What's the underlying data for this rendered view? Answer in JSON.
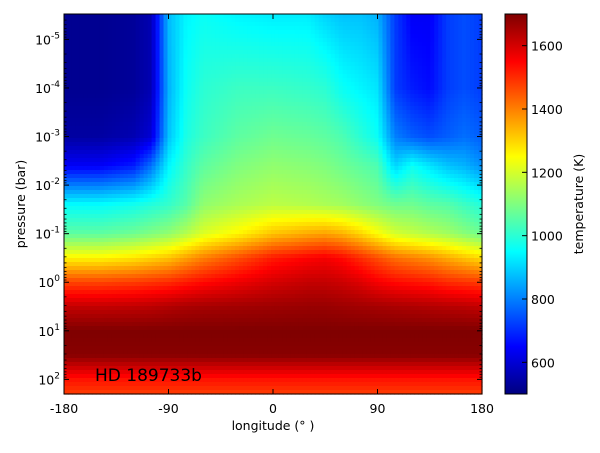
{
  "chart_data": {
    "type": "heatmap",
    "xlabel": "longitude (° )",
    "ylabel": "pressure (bar)",
    "colorbar_label": "temperature (K)",
    "annotation": "HD 189733b",
    "x_range": [
      -180,
      180
    ],
    "y_range_bar": [
      200,
      3e-06
    ],
    "y_scale": "log",
    "y_inverted": true,
    "colormap": "jet",
    "color_range_K": [
      500,
      1700
    ],
    "colorbar_ticks": [
      {
        "value": 600,
        "label": "600"
      },
      {
        "value": 800,
        "label": "800"
      },
      {
        "value": 1000,
        "label": "1000"
      },
      {
        "value": 1200,
        "label": "1200"
      },
      {
        "value": 1400,
        "label": "1400"
      },
      {
        "value": 1600,
        "label": "1600"
      }
    ],
    "x_ticks": [
      {
        "value": -180,
        "label": "-180"
      },
      {
        "value": -90,
        "label": "-90"
      },
      {
        "value": 0,
        "label": "0"
      },
      {
        "value": 90,
        "label": "90"
      },
      {
        "value": 180,
        "label": "180"
      }
    ],
    "y_ticks": [
      {
        "exp": -5,
        "base": "10",
        "sup": "-5"
      },
      {
        "exp": -4,
        "base": "10",
        "sup": "-4"
      },
      {
        "exp": -3,
        "base": "10",
        "sup": "-3"
      },
      {
        "exp": -2,
        "base": "10",
        "sup": "-2"
      },
      {
        "exp": -1,
        "base": "10",
        "sup": "-1"
      },
      {
        "exp": 0,
        "base": "10",
        "sup": "0"
      },
      {
        "exp": 1,
        "base": "10",
        "sup": "1"
      },
      {
        "exp": 2,
        "base": "10",
        "sup": "2"
      }
    ],
    "temperature_grid": {
      "longitudes": [
        -180,
        -150,
        -120,
        -105,
        -90,
        -75,
        -60,
        -30,
        0,
        30,
        45,
        60,
        75,
        90,
        105,
        120,
        135,
        150,
        165,
        180
      ],
      "log10_pressures": [
        -5.5,
        -4.0,
        -3.0,
        -2.4,
        -1.6,
        -1.0,
        -0.5,
        0.0,
        0.5,
        1.0,
        1.5,
        2.0,
        2.3
      ],
      "values_K": [
        [
          520,
          520,
          530,
          560,
          870,
          940,
          960,
          940,
          930,
          930,
          900,
          880,
          880,
          860,
          720,
          640,
          640,
          720,
          740,
          720
        ],
        [
          520,
          520,
          530,
          560,
          860,
          960,
          1000,
          1020,
          1020,
          1010,
          1000,
          960,
          940,
          920,
          720,
          680,
          660,
          720,
          740,
          720
        ],
        [
          540,
          540,
          560,
          600,
          880,
          980,
          1020,
          1060,
          1080,
          1070,
          1060,
          1040,
          1000,
          960,
          800,
          760,
          740,
          760,
          780,
          760
        ],
        [
          640,
          640,
          680,
          780,
          940,
          1010,
          1060,
          1100,
          1120,
          1110,
          1100,
          1080,
          1060,
          1040,
          900,
          960,
          920,
          880,
          860,
          820
        ],
        [
          950,
          950,
          970,
          990,
          1010,
          1050,
          1120,
          1150,
          1170,
          1160,
          1150,
          1140,
          1120,
          1100,
          1080,
          1080,
          1060,
          1050,
          1020,
          990
        ],
        [
          1060,
          1060,
          1080,
          1100,
          1120,
          1160,
          1210,
          1260,
          1320,
          1350,
          1360,
          1340,
          1300,
          1250,
          1200,
          1180,
          1160,
          1140,
          1110,
          1080
        ],
        [
          1260,
          1260,
          1280,
          1300,
          1320,
          1360,
          1400,
          1460,
          1520,
          1550,
          1560,
          1540,
          1500,
          1460,
          1420,
          1400,
          1380,
          1350,
          1320,
          1290
        ],
        [
          1470,
          1470,
          1480,
          1490,
          1500,
          1520,
          1540,
          1570,
          1600,
          1620,
          1620,
          1610,
          1590,
          1560,
          1540,
          1530,
          1520,
          1500,
          1490,
          1480
        ],
        [
          1620,
          1620,
          1625,
          1630,
          1640,
          1650,
          1655,
          1660,
          1665,
          1670,
          1670,
          1665,
          1660,
          1655,
          1650,
          1645,
          1640,
          1635,
          1630,
          1620
        ],
        [
          1700,
          1700,
          1700,
          1700,
          1700,
          1700,
          1700,
          1700,
          1700,
          1700,
          1700,
          1700,
          1700,
          1700,
          1700,
          1700,
          1700,
          1700,
          1700,
          1700
        ],
        [
          1690,
          1690,
          1690,
          1690,
          1690,
          1690,
          1690,
          1690,
          1690,
          1690,
          1690,
          1690,
          1690,
          1690,
          1690,
          1690,
          1690,
          1690,
          1690,
          1690
        ],
        [
          1530,
          1530,
          1530,
          1530,
          1530,
          1530,
          1530,
          1530,
          1530,
          1530,
          1530,
          1530,
          1530,
          1530,
          1530,
          1530,
          1530,
          1530,
          1530,
          1530
        ],
        [
          1480,
          1480,
          1480,
          1480,
          1480,
          1480,
          1480,
          1480,
          1480,
          1480,
          1480,
          1480,
          1480,
          1480,
          1480,
          1480,
          1480,
          1480,
          1480,
          1480
        ]
      ]
    }
  }
}
